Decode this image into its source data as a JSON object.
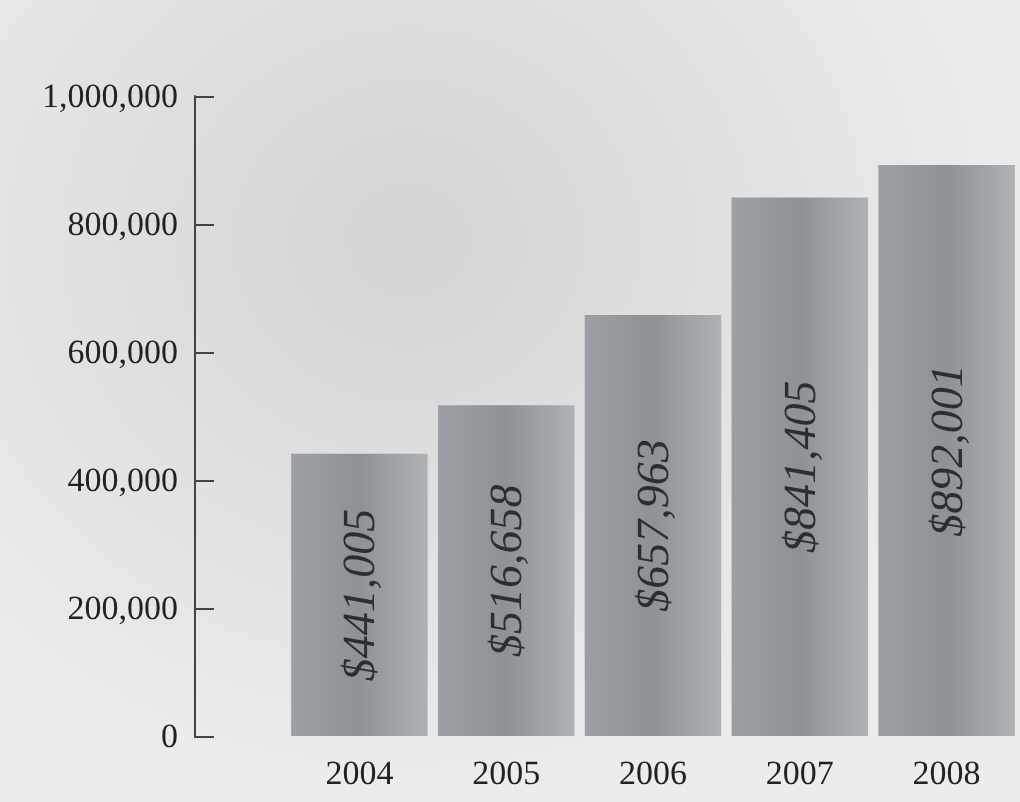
{
  "chart_data": {
    "type": "bar",
    "categories": [
      "2004",
      "2005",
      "2006",
      "2007",
      "2008"
    ],
    "values": [
      441005,
      516658,
      657963,
      841405,
      892001
    ],
    "value_labels": [
      "$441,005",
      "$516,658",
      "$657,963",
      "$841,405",
      "$892,001"
    ],
    "color": "#8e9296",
    "ylim": [
      0,
      1000000
    ],
    "yticks": [
      {
        "value": 0,
        "label": "0"
      },
      {
        "value": 200000,
        "label": "200,000"
      },
      {
        "value": 400000,
        "label": "400,000"
      },
      {
        "value": 600000,
        "label": "600,000"
      },
      {
        "value": 800000,
        "label": "800,000"
      },
      {
        "value": 1000000,
        "label": "1,000,000"
      }
    ],
    "grid": false
  }
}
